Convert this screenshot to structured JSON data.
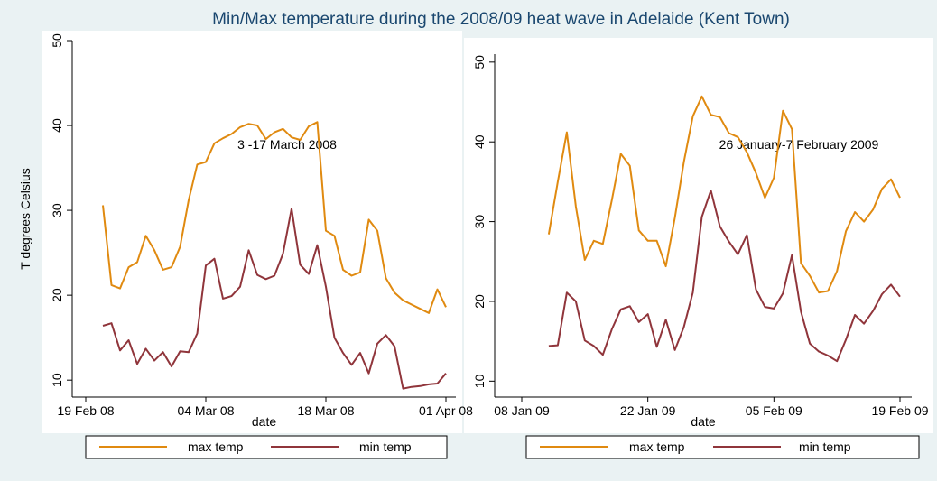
{
  "title": "Min/Max temperature during the 2008/09 heat wave in Adelaide (Kent Town)",
  "chart_data": [
    {
      "type": "line",
      "xlabel": "date",
      "ylabel": "T degrees Celsius",
      "annotation": "3  -17 March 2008",
      "x": [
        "2008-02-21",
        "2008-02-22",
        "2008-02-23",
        "2008-02-24",
        "2008-02-25",
        "2008-02-26",
        "2008-02-27",
        "2008-02-28",
        "2008-02-29",
        "2008-03-01",
        "2008-03-02",
        "2008-03-03",
        "2008-03-04",
        "2008-03-05",
        "2008-03-06",
        "2008-03-07",
        "2008-03-08",
        "2008-03-09",
        "2008-03-10",
        "2008-03-11",
        "2008-03-12",
        "2008-03-13",
        "2008-03-14",
        "2008-03-15",
        "2008-03-16",
        "2008-03-17",
        "2008-03-18",
        "2008-03-19",
        "2008-03-20",
        "2008-03-21",
        "2008-03-22",
        "2008-03-23",
        "2008-03-24",
        "2008-03-25",
        "2008-03-26",
        "2008-03-27",
        "2008-03-28",
        "2008-03-29",
        "2008-03-30",
        "2008-03-31",
        "2008-04-01"
      ],
      "series": [
        {
          "name": "max temp",
          "color": "#e08a10",
          "values": [
            30.6,
            21.2,
            20.8,
            23.3,
            23.9,
            27.0,
            25.3,
            23.0,
            23.3,
            25.7,
            31.2,
            35.4,
            35.7,
            37.9,
            38.5,
            39.0,
            39.8,
            40.2,
            40.0,
            38.4,
            39.2,
            39.6,
            38.6,
            38.3,
            39.9,
            40.4,
            27.6,
            27.0,
            23.0,
            22.3,
            22.7,
            28.9,
            27.6,
            22.0,
            20.3,
            19.4,
            18.9,
            18.4,
            17.9,
            20.7,
            18.6
          ]
        },
        {
          "name": "min temp",
          "color": "#90353b",
          "values": [
            16.4,
            16.7,
            13.5,
            14.7,
            11.9,
            13.7,
            12.3,
            13.3,
            11.6,
            13.4,
            13.3,
            15.5,
            23.5,
            24.3,
            19.6,
            19.9,
            21.0,
            25.3,
            22.4,
            21.9,
            22.3,
            24.9,
            30.2,
            23.6,
            22.5,
            25.9,
            21.0,
            15.0,
            13.2,
            11.8,
            13.2,
            10.8,
            14.3,
            15.3,
            14.0,
            9.0,
            9.2,
            9.3,
            9.5,
            9.6,
            10.8
          ]
        }
      ],
      "ylim": [
        8,
        50
      ],
      "yticks": [
        10,
        20,
        30,
        40,
        50
      ],
      "xticks": [
        {
          "value": "2008-02-19",
          "label": "19 Feb 08"
        },
        {
          "value": "2008-03-04",
          "label": "04 Mar 08"
        },
        {
          "value": "2008-03-18",
          "label": "18 Mar 08"
        },
        {
          "value": "2008-04-01",
          "label": "01 Apr 08"
        }
      ],
      "legend": "bottom"
    },
    {
      "type": "line",
      "xlabel": "date",
      "annotation": "26 January-7 February 2009",
      "x": [
        "2009-01-11",
        "2009-01-12",
        "2009-01-13",
        "2009-01-14",
        "2009-01-15",
        "2009-01-16",
        "2009-01-17",
        "2009-01-18",
        "2009-01-19",
        "2009-01-20",
        "2009-01-21",
        "2009-01-22",
        "2009-01-23",
        "2009-01-24",
        "2009-01-25",
        "2009-01-26",
        "2009-01-27",
        "2009-01-28",
        "2009-01-29",
        "2009-01-30",
        "2009-01-31",
        "2009-02-01",
        "2009-02-02",
        "2009-02-03",
        "2009-02-04",
        "2009-02-05",
        "2009-02-06",
        "2009-02-07",
        "2009-02-08",
        "2009-02-09",
        "2009-02-10",
        "2009-02-11",
        "2009-02-12",
        "2009-02-13",
        "2009-02-14",
        "2009-02-15",
        "2009-02-16",
        "2009-02-17",
        "2009-02-18",
        "2009-02-19"
      ],
      "series": [
        {
          "name": "max temp",
          "color": "#e08a10",
          "values": [
            28.4,
            35.0,
            41.2,
            31.9,
            25.2,
            27.6,
            27.2,
            32.7,
            38.5,
            37.0,
            28.9,
            27.6,
            27.6,
            24.4,
            30.5,
            37.5,
            43.2,
            45.7,
            43.4,
            43.1,
            41.1,
            40.6,
            38.7,
            36.1,
            33.0,
            35.5,
            43.9,
            41.6,
            24.8,
            23.2,
            21.1,
            21.3,
            23.8,
            28.8,
            31.2,
            30.0,
            31.5,
            34.1,
            35.3,
            33.0
          ]
        },
        {
          "name": "min temp",
          "color": "#90353b",
          "values": [
            14.4,
            14.5,
            21.1,
            20.0,
            15.1,
            14.4,
            13.3,
            16.5,
            19.0,
            19.4,
            17.4,
            18.4,
            14.3,
            17.7,
            13.9,
            16.8,
            21.1,
            30.6,
            33.9,
            29.4,
            27.5,
            25.9,
            28.3,
            21.5,
            19.3,
            19.1,
            21.0,
            25.8,
            18.7,
            14.7,
            13.7,
            13.2,
            12.5,
            15.2,
            18.3,
            17.2,
            18.8,
            20.9,
            22.1,
            20.6
          ]
        }
      ],
      "ylim": [
        8,
        51
      ],
      "yticks": [
        10,
        20,
        30,
        40,
        50
      ],
      "xticks": [
        {
          "value": "2009-01-08",
          "label": "08 Jan 09"
        },
        {
          "value": "2009-01-22",
          "label": "22 Jan 09"
        },
        {
          "value": "2009-02-05",
          "label": "05 Feb 09"
        },
        {
          "value": "2009-02-19",
          "label": "19 Feb 09"
        }
      ],
      "legend": "bottom"
    }
  ]
}
